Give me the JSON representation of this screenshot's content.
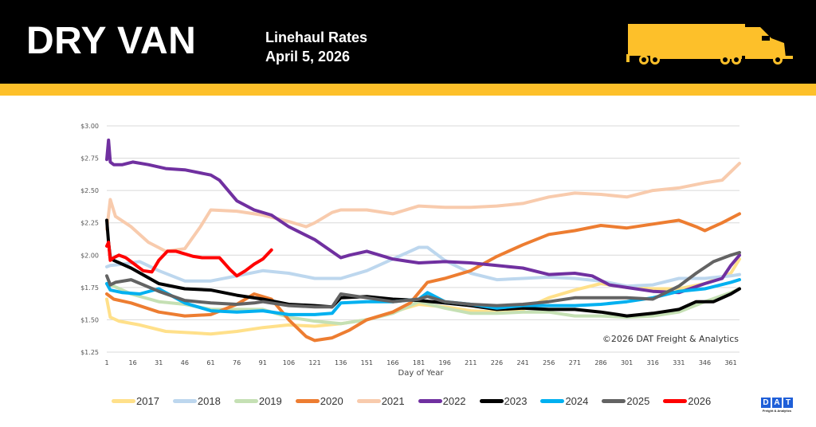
{
  "header": {
    "title": "DRY VAN",
    "subtitle_line1": "Linehaul Rates",
    "subtitle_line2": "April 5, 2026",
    "icon": "semi-truck-icon",
    "accent_color": "#fdc02a"
  },
  "logo": {
    "letters": [
      "D",
      "A",
      "T"
    ],
    "tagline": "Freight & Analytics",
    "color": "#1f5fd8"
  },
  "chart_data": {
    "type": "line",
    "title": "Dry Van Linehaul Rates",
    "xlabel": "Day of Year",
    "ylabel": "",
    "xlim": [
      1,
      366
    ],
    "ylim": [
      1.25,
      3.0
    ],
    "x_ticks": [
      "1",
      "16",
      "31",
      "46",
      "61",
      "76",
      "91",
      "106",
      "121",
      "136",
      "151",
      "166",
      "181",
      "196",
      "211",
      "226",
      "241",
      "256",
      "271",
      "286",
      "301",
      "316",
      "331",
      "346",
      "361"
    ],
    "y_ticks": [
      "$3.00",
      "$2.75",
      "$2.50",
      "$2.25",
      "$2.00",
      "$1.75",
      "$1.50",
      "$1.25"
    ],
    "y_tick_values": [
      3.0,
      2.75,
      2.5,
      2.25,
      2.0,
      1.75,
      1.5,
      1.25
    ],
    "grid": true,
    "legend_position": "bottom",
    "annotation": "©2026 DAT Freight & Analytics",
    "series": [
      {
        "name": "2017",
        "color": "#ffe08a",
        "x": [
          1,
          3,
          8,
          20,
          35,
          50,
          61,
          76,
          91,
          106,
          121,
          136,
          151,
          166,
          181,
          196,
          211,
          226,
          241,
          256,
          271,
          286,
          301,
          316,
          331,
          346,
          361,
          366
        ],
        "values": [
          1.66,
          1.52,
          1.49,
          1.46,
          1.41,
          1.4,
          1.39,
          1.41,
          1.44,
          1.46,
          1.45,
          1.47,
          1.5,
          1.56,
          1.62,
          1.6,
          1.57,
          1.56,
          1.58,
          1.67,
          1.73,
          1.78,
          1.75,
          1.74,
          1.74,
          1.78,
          1.86,
          1.97
        ]
      },
      {
        "name": "2018",
        "color": "#bdd7ee",
        "x": [
          1,
          3,
          10,
          20,
          31,
          46,
          61,
          76,
          91,
          106,
          121,
          136,
          151,
          166,
          181,
          186,
          196,
          211,
          226,
          241,
          256,
          271,
          286,
          301,
          316,
          331,
          346,
          361,
          366
        ],
        "values": [
          1.91,
          1.92,
          1.93,
          1.95,
          1.88,
          1.8,
          1.8,
          1.84,
          1.88,
          1.86,
          1.82,
          1.82,
          1.88,
          1.97,
          2.06,
          2.06,
          1.96,
          1.86,
          1.81,
          1.82,
          1.83,
          1.82,
          1.8,
          1.76,
          1.77,
          1.82,
          1.82,
          1.84,
          1.85
        ]
      },
      {
        "name": "2019",
        "color": "#c5e0b4",
        "x": [
          1,
          5,
          15,
          31,
          46,
          61,
          76,
          91,
          106,
          121,
          136,
          151,
          166,
          181,
          196,
          211,
          226,
          241,
          256,
          271,
          286,
          301,
          316,
          331,
          346,
          361,
          366
        ],
        "values": [
          1.78,
          1.76,
          1.7,
          1.64,
          1.62,
          1.58,
          1.58,
          1.58,
          1.52,
          1.49,
          1.47,
          1.5,
          1.55,
          1.64,
          1.59,
          1.55,
          1.55,
          1.56,
          1.56,
          1.53,
          1.53,
          1.52,
          1.53,
          1.56,
          1.64,
          1.71,
          1.74
        ]
      },
      {
        "name": "2020",
        "color": "#ed7d31",
        "x": [
          1,
          5,
          15,
          31,
          46,
          61,
          76,
          86,
          96,
          106,
          116,
          121,
          131,
          141,
          151,
          166,
          176,
          186,
          196,
          211,
          226,
          241,
          256,
          271,
          286,
          301,
          316,
          331,
          341,
          346,
          356,
          366
        ],
        "values": [
          1.7,
          1.66,
          1.63,
          1.56,
          1.53,
          1.54,
          1.62,
          1.7,
          1.66,
          1.5,
          1.37,
          1.34,
          1.36,
          1.42,
          1.5,
          1.56,
          1.63,
          1.79,
          1.82,
          1.88,
          1.99,
          2.08,
          2.16,
          2.19,
          2.23,
          2.21,
          2.24,
          2.27,
          2.22,
          2.19,
          2.25,
          2.32
        ]
      },
      {
        "name": "2021",
        "color": "#f8cbad",
        "x": [
          1,
          3,
          6,
          15,
          25,
          35,
          46,
          55,
          61,
          76,
          91,
          106,
          116,
          121,
          131,
          136,
          151,
          166,
          181,
          196,
          211,
          226,
          241,
          256,
          271,
          286,
          301,
          316,
          331,
          346,
          356,
          366
        ],
        "values": [
          2.2,
          2.43,
          2.3,
          2.22,
          2.1,
          2.03,
          2.05,
          2.22,
          2.35,
          2.34,
          2.31,
          2.26,
          2.22,
          2.25,
          2.33,
          2.35,
          2.35,
          2.32,
          2.38,
          2.37,
          2.37,
          2.38,
          2.4,
          2.45,
          2.48,
          2.47,
          2.45,
          2.5,
          2.52,
          2.56,
          2.58,
          2.71
        ]
      },
      {
        "name": "2022",
        "color": "#7030a0",
        "x": [
          1,
          2,
          3,
          5,
          10,
          16,
          25,
          35,
          46,
          61,
          66,
          76,
          86,
          96,
          106,
          121,
          136,
          141,
          151,
          166,
          181,
          196,
          211,
          226,
          241,
          256,
          271,
          281,
          291,
          301,
          316,
          331,
          346,
          356,
          361,
          366
        ],
        "values": [
          2.74,
          2.89,
          2.72,
          2.7,
          2.7,
          2.72,
          2.7,
          2.67,
          2.66,
          2.62,
          2.58,
          2.42,
          2.35,
          2.31,
          2.22,
          2.12,
          1.98,
          2.0,
          2.03,
          1.97,
          1.94,
          1.95,
          1.94,
          1.92,
          1.9,
          1.85,
          1.86,
          1.84,
          1.77,
          1.75,
          1.72,
          1.71,
          1.78,
          1.82,
          1.92,
          2.0
        ]
      },
      {
        "name": "2023",
        "color": "#000000",
        "x": [
          1,
          2,
          3,
          5,
          15,
          31,
          46,
          61,
          76,
          91,
          106,
          121,
          131,
          136,
          151,
          166,
          181,
          196,
          211,
          226,
          241,
          256,
          271,
          286,
          296,
          301,
          316,
          331,
          341,
          351,
          361,
          366
        ],
        "values": [
          2.27,
          2.1,
          1.98,
          1.96,
          1.9,
          1.78,
          1.74,
          1.73,
          1.69,
          1.66,
          1.62,
          1.61,
          1.6,
          1.67,
          1.68,
          1.66,
          1.65,
          1.63,
          1.61,
          1.58,
          1.59,
          1.58,
          1.58,
          1.56,
          1.54,
          1.53,
          1.55,
          1.58,
          1.64,
          1.64,
          1.7,
          1.74
        ]
      },
      {
        "name": "2024",
        "color": "#00b0f0",
        "x": [
          1,
          3,
          10,
          20,
          31,
          46,
          61,
          76,
          91,
          106,
          121,
          131,
          136,
          151,
          166,
          181,
          186,
          196,
          211,
          226,
          241,
          256,
          271,
          286,
          301,
          316,
          331,
          346,
          361,
          366
        ],
        "values": [
          1.78,
          1.73,
          1.71,
          1.7,
          1.74,
          1.63,
          1.57,
          1.56,
          1.57,
          1.54,
          1.54,
          1.55,
          1.63,
          1.64,
          1.64,
          1.66,
          1.71,
          1.64,
          1.62,
          1.59,
          1.61,
          1.61,
          1.61,
          1.62,
          1.64,
          1.67,
          1.72,
          1.74,
          1.79,
          1.81
        ]
      },
      {
        "name": "2025",
        "color": "#636363",
        "x": [
          1,
          3,
          6,
          15,
          31,
          46,
          61,
          76,
          86,
          91,
          106,
          121,
          131,
          136,
          151,
          166,
          181,
          186,
          196,
          211,
          226,
          241,
          256,
          271,
          286,
          301,
          316,
          331,
          341,
          351,
          361,
          366
        ],
        "values": [
          1.84,
          1.77,
          1.79,
          1.81,
          1.72,
          1.65,
          1.63,
          1.62,
          1.63,
          1.64,
          1.61,
          1.6,
          1.6,
          1.7,
          1.67,
          1.64,
          1.66,
          1.68,
          1.64,
          1.62,
          1.61,
          1.62,
          1.64,
          1.67,
          1.67,
          1.67,
          1.66,
          1.76,
          1.86,
          1.95,
          2.0,
          2.02
        ]
      },
      {
        "name": "2026",
        "color": "#ff0000",
        "x": [
          1,
          2,
          3,
          5,
          8,
          12,
          16,
          22,
          27,
          31,
          36,
          41,
          46,
          51,
          56,
          61,
          66,
          72,
          76,
          81,
          86,
          91,
          96
        ],
        "values": [
          2.07,
          2.1,
          1.96,
          1.98,
          2.0,
          1.98,
          1.94,
          1.88,
          1.87,
          1.96,
          2.03,
          2.03,
          2.01,
          1.99,
          1.98,
          1.98,
          1.98,
          1.89,
          1.84,
          1.88,
          1.93,
          1.97,
          2.04
        ]
      }
    ]
  }
}
